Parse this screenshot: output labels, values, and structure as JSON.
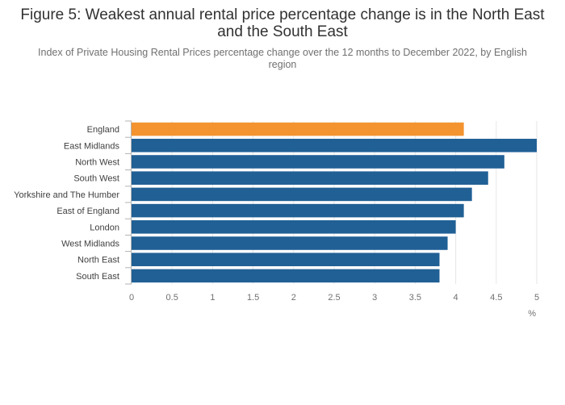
{
  "title": "Figure 5: Weakest annual rental price percentage change is in the North East and the South East",
  "subtitle": "Index of Private Housing Rental Prices percentage change over the 12 months to December 2022, by English region",
  "chart_data": {
    "type": "bar",
    "orientation": "horizontal",
    "categories": [
      "England",
      "East Midlands",
      "North West",
      "South West",
      "Yorkshire and The Humber",
      "East of England",
      "London",
      "West Midlands",
      "North East",
      "South East"
    ],
    "values": [
      4.1,
      5.0,
      4.6,
      4.4,
      4.2,
      4.1,
      4.0,
      3.9,
      3.8,
      3.8
    ],
    "highlight": "England",
    "xlabel": "%",
    "ylabel": "",
    "xlim": [
      0,
      5
    ],
    "xticks": [
      0,
      0.5,
      1,
      1.5,
      2,
      2.5,
      3,
      3.5,
      4,
      4.5,
      5
    ],
    "xtick_labels": [
      "0",
      "0.5",
      "1",
      "1.5",
      "2",
      "2.5",
      "3",
      "3.5",
      "4",
      "4.5",
      "5"
    ],
    "grid": true,
    "colors": {
      "bar": "#206095",
      "highlight": "#f39431",
      "grid": "#e6e6e6",
      "axis": "#b3b3b3"
    }
  }
}
